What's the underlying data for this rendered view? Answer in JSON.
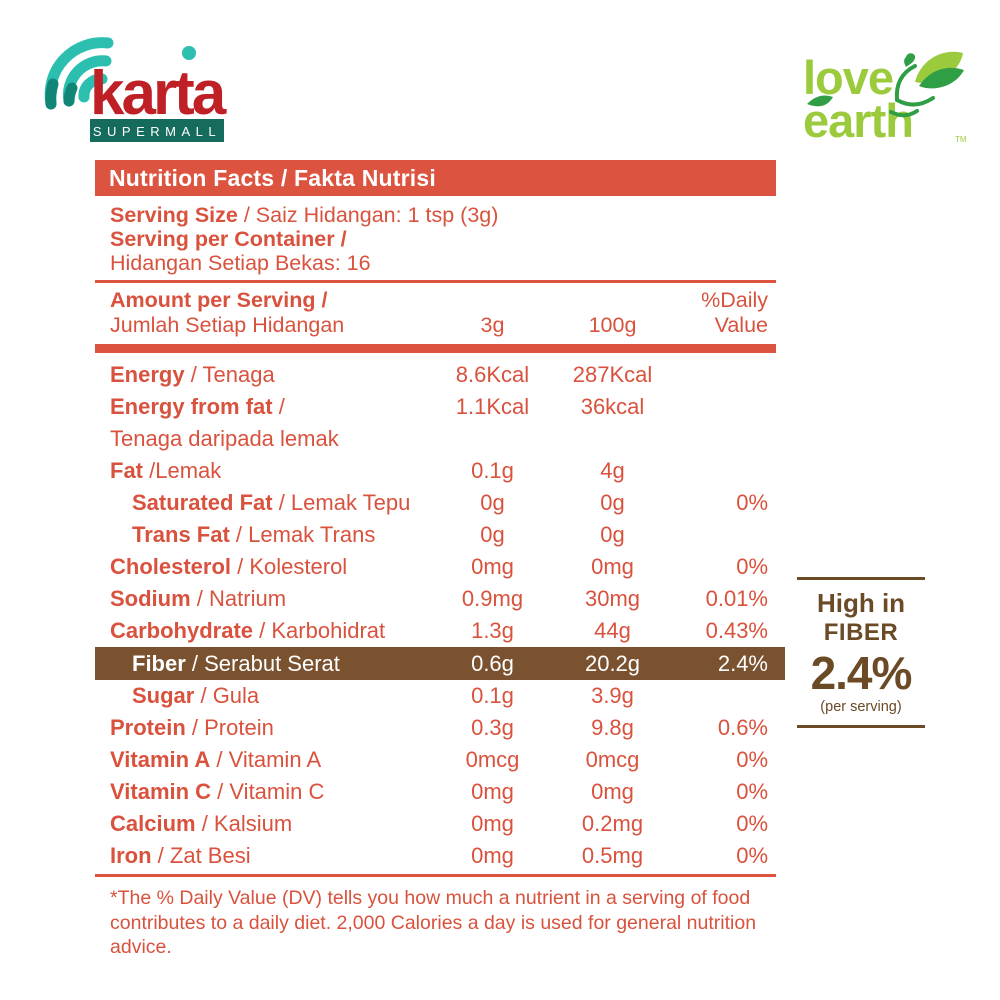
{
  "brand": {
    "karta": {
      "wordmark": "karta",
      "tagline": "SUPERMALL"
    },
    "love_earth": {
      "word1": "love",
      "word2": "earth",
      "tm": "TM"
    }
  },
  "colors": {
    "accent_orange": "#DC5440",
    "text_orange": "#D9523D",
    "fiber_brown": "#7A5230",
    "callout_brown": "#6B4A26",
    "karta_red": "#BE2026",
    "karta_teal": "#2CBFB0",
    "karta_teal_dark": "#0F8676",
    "karta_green_box": "#156B5C",
    "love_light_green": "#9BCB3D",
    "love_dark_green": "#2F9E44"
  },
  "label": {
    "title": "Nutrition Facts / Fakta Nutrisi",
    "serving": {
      "size_bold": "Serving Size",
      "size_rest": " / Saiz Hidangan: 1 tsp (3g)",
      "container_bold": "Serving per Container /",
      "container_rest": "Hidangan Setiap Bekas: 16"
    },
    "amount_header": {
      "bold": "Amount per Serving /",
      "rest": "Jumlah Setiap Hidangan",
      "col_3g": "3g",
      "col_100g": "100g",
      "dv_line1": "%Daily",
      "dv_line2": "Value"
    },
    "rows": [
      {
        "bold": "Energy",
        "rest": " / Tenaga",
        "v3g": "8.6Kcal",
        "v100g": "287Kcal",
        "dv": ""
      },
      {
        "bold": "Energy from fat",
        "rest": " /",
        "wrap": "Tenaga daripada lemak",
        "v3g": "1.1Kcal",
        "v100g": "36kcal",
        "dv": ""
      },
      {
        "bold": "Fat",
        "rest": " /Lemak",
        "v3g": "0.1g",
        "v100g": "4g",
        "dv": ""
      },
      {
        "bold": "Saturated Fat",
        "rest": " / Lemak Tepu",
        "indent": true,
        "v3g": "0g",
        "v100g": "0g",
        "dv": "0%"
      },
      {
        "bold": "Trans Fat",
        "rest": " / Lemak Trans",
        "indent": true,
        "v3g": "0g",
        "v100g": "0g",
        "dv": ""
      },
      {
        "bold": "Cholesterol",
        "rest": " / Kolesterol",
        "v3g": "0mg",
        "v100g": "0mg",
        "dv": "0%"
      },
      {
        "bold": "Sodium",
        "rest": " / Natrium",
        "v3g": "0.9mg",
        "v100g": "30mg",
        "dv": "0.01%"
      },
      {
        "bold": "Carbohydrate",
        "rest": " / Karbohidrat",
        "v3g": "1.3g",
        "v100g": "44g",
        "dv": "0.43%"
      },
      {
        "bold": "Fiber",
        "rest": " / Serabut Serat",
        "indent": true,
        "highlight": true,
        "v3g": "0.6g",
        "v100g": "20.2g",
        "dv": "2.4%"
      },
      {
        "bold": "Sugar",
        "rest": " / Gula",
        "indent": true,
        "v3g": "0.1g",
        "v100g": "3.9g",
        "dv": ""
      },
      {
        "bold": "Protein",
        "rest": " / Protein",
        "v3g": "0.3g",
        "v100g": "9.8g",
        "dv": "0.6%"
      },
      {
        "bold": "Vitamin A",
        "rest": " / Vitamin A",
        "v3g": "0mcg",
        "v100g": "0mcg",
        "dv": "0%"
      },
      {
        "bold": "Vitamin C",
        "rest": " / Vitamin C",
        "v3g": "0mg",
        "v100g": "0mg",
        "dv": "0%"
      },
      {
        "bold": "Calcium",
        "rest": " / Kalsium",
        "v3g": "0mg",
        "v100g": "0.2mg",
        "dv": "0%"
      },
      {
        "bold": "Iron",
        "rest": " / Zat Besi",
        "v3g": "0mg",
        "v100g": "0.5mg",
        "dv": "0%"
      }
    ],
    "footnote": "*The % Daily Value (DV) tells you how much a nutrient in a serving of food contributes to a daily diet. 2,000 Calories a day is used for general nutrition advice."
  },
  "callout": {
    "line1": "High in",
    "line2": "FIBER",
    "value": "2.4%",
    "note": "(per serving)"
  }
}
